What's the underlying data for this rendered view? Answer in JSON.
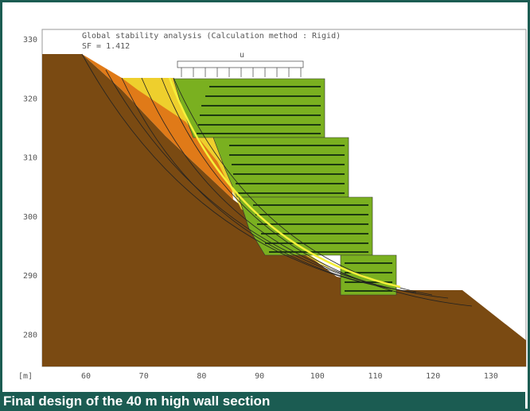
{
  "figure": {
    "title": "Global stability analysis (Calculation method : Rigid)",
    "safety_factor": "SF = 1.412",
    "load_label": "u",
    "axis_unit": "[m]",
    "y_ticks": [
      "330",
      "320",
      "310",
      "300",
      "290",
      "280"
    ],
    "x_ticks": [
      "60",
      "70",
      "80",
      "90",
      "100",
      "110",
      "120",
      "130"
    ]
  },
  "caption": "Final design of the 40 m high wall section"
}
